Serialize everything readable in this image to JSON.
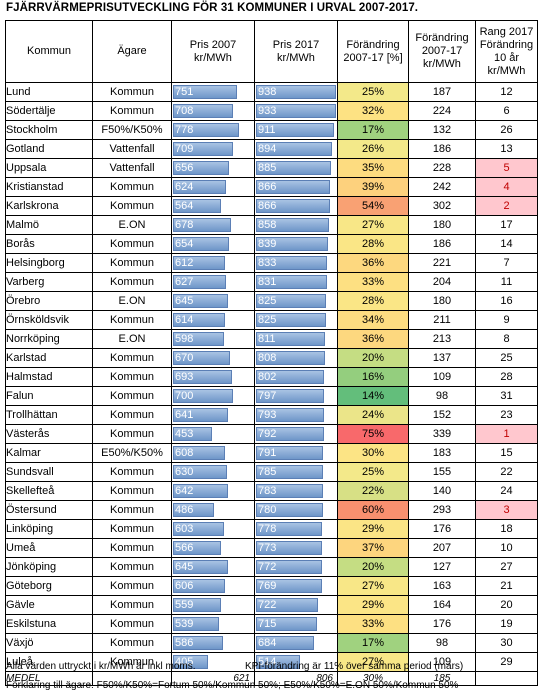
{
  "title": "FJÄRRVÄRMEPRISUTVECKLING FÖR 31 KOMMUNER I URVAL 2007-2017.",
  "headers": {
    "kommun": "Kommun",
    "agare": "Ägare",
    "pris2007": "Pris 2007 kr/MWh",
    "pris2017": "Pris 2017 kr/MWh",
    "forandring_pct": "Förändring 2007-17 [%]",
    "forandring_kr": "Förändring 2007-17 kr/MWh",
    "rang": "Rang 2017 Förändring 10 år kr/MWh"
  },
  "rows": [
    {
      "kommun": "Lund",
      "agare": "Kommun",
      "p2007": 751,
      "p2017": 938,
      "pct": "25%",
      "diff": 187,
      "rang": 12,
      "color": "#f3e98a"
    },
    {
      "kommun": "Södertälje",
      "agare": "Kommun",
      "p2007": 708,
      "p2017": 933,
      "pct": "32%",
      "diff": 224,
      "rang": 6,
      "color": "#fde283"
    },
    {
      "kommun": "Stockholm",
      "agare": "F50%/K50%",
      "p2007": 778,
      "p2017": 911,
      "pct": "17%",
      "diff": 132,
      "rang": 26,
      "color": "#a0d27f"
    },
    {
      "kommun": "Gotland",
      "agare": "Vattenfall",
      "p2007": 709,
      "p2017": 894,
      "pct": "26%",
      "diff": 186,
      "rang": 13,
      "color": "#f3e98a"
    },
    {
      "kommun": "Uppsala",
      "agare": "Vattenfall",
      "p2007": 656,
      "p2017": 885,
      "pct": "35%",
      "diff": 228,
      "rang": 5,
      "color": "#fddc80"
    },
    {
      "kommun": "Kristianstad",
      "agare": "Kommun",
      "p2007": 624,
      "p2017": 866,
      "pct": "39%",
      "diff": 242,
      "rang": 4,
      "color": "#fdd17d"
    },
    {
      "kommun": "Karlskrona",
      "agare": "Kommun",
      "p2007": 564,
      "p2017": 866,
      "pct": "54%",
      "diff": 302,
      "rang": 2,
      "color": "#f9a173"
    },
    {
      "kommun": "Malmö",
      "agare": "E.ON",
      "p2007": 678,
      "p2017": 858,
      "pct": "27%",
      "diff": 180,
      "rang": 17,
      "color": "#f8e787"
    },
    {
      "kommun": "Borås",
      "agare": "Kommun",
      "p2007": 654,
      "p2017": 839,
      "pct": "28%",
      "diff": 186,
      "rang": 14,
      "color": "#fae686"
    },
    {
      "kommun": "Helsingborg",
      "agare": "Kommun",
      "p2007": 612,
      "p2017": 833,
      "pct": "36%",
      "diff": 221,
      "rang": 7,
      "color": "#fdd87f"
    },
    {
      "kommun": "Varberg",
      "agare": "Kommun",
      "p2007": 627,
      "p2017": 831,
      "pct": "33%",
      "diff": 204,
      "rang": 11,
      "color": "#fde082"
    },
    {
      "kommun": "Örebro",
      "agare": "E.ON",
      "p2007": 645,
      "p2017": 825,
      "pct": "28%",
      "diff": 180,
      "rang": 16,
      "color": "#fae686"
    },
    {
      "kommun": "Örnsköldsvik",
      "agare": "Kommun",
      "p2007": 614,
      "p2017": 825,
      "pct": "34%",
      "diff": 211,
      "rang": 9,
      "color": "#fddd81"
    },
    {
      "kommun": "Norrköping",
      "agare": "E.ON",
      "p2007": 598,
      "p2017": 811,
      "pct": "36%",
      "diff": 213,
      "rang": 8,
      "color": "#fdd87f"
    },
    {
      "kommun": "Karlstad",
      "agare": "Kommun",
      "p2007": 670,
      "p2017": 808,
      "pct": "20%",
      "diff": 137,
      "rang": 25,
      "color": "#c5dd83"
    },
    {
      "kommun": "Halmstad",
      "agare": "Kommun",
      "p2007": 693,
      "p2017": 802,
      "pct": "16%",
      "diff": 109,
      "rang": 28,
      "color": "#94ce7e"
    },
    {
      "kommun": "Falun",
      "agare": "Kommun",
      "p2007": 700,
      "p2017": 797,
      "pct": "14%",
      "diff": 98,
      "rang": 31,
      "color": "#63be7b"
    },
    {
      "kommun": "Trollhättan",
      "agare": "Kommun",
      "p2007": 641,
      "p2017": 793,
      "pct": "24%",
      "diff": 152,
      "rang": 23,
      "color": "#ebe589"
    },
    {
      "kommun": "Västerås",
      "agare": "Kommun",
      "p2007": 453,
      "p2017": 792,
      "pct": "75%",
      "diff": 339,
      "rang": 1,
      "color": "#f8696b"
    },
    {
      "kommun": "Kalmar",
      "agare": "E50%/K50%",
      "p2007": 608,
      "p2017": 791,
      "pct": "30%",
      "diff": 183,
      "rang": 15,
      "color": "#fce485"
    },
    {
      "kommun": "Sundsvall",
      "agare": "Kommun",
      "p2007": 630,
      "p2017": 785,
      "pct": "25%",
      "diff": 155,
      "rang": 22,
      "color": "#f3e98a"
    },
    {
      "kommun": "Skellefteå",
      "agare": "Kommun",
      "p2007": 642,
      "p2017": 783,
      "pct": "22%",
      "diff": 140,
      "rang": 24,
      "color": "#d7e085"
    },
    {
      "kommun": "Östersund",
      "agare": "Kommun",
      "p2007": 486,
      "p2017": 780,
      "pct": "60%",
      "diff": 293,
      "rang": 3,
      "color": "#f8906f"
    },
    {
      "kommun": "Linköping",
      "agare": "Kommun",
      "p2007": 603,
      "p2017": 778,
      "pct": "29%",
      "diff": 176,
      "rang": 18,
      "color": "#fbe586"
    },
    {
      "kommun": "Umeå",
      "agare": "Kommun",
      "p2007": 566,
      "p2017": 773,
      "pct": "37%",
      "diff": 207,
      "rang": 10,
      "color": "#fdd57e"
    },
    {
      "kommun": "Jönköping",
      "agare": "Kommun",
      "p2007": 645,
      "p2017": 772,
      "pct": "20%",
      "diff": 127,
      "rang": 27,
      "color": "#c5dd83"
    },
    {
      "kommun": "Göteborg",
      "agare": "Kommun",
      "p2007": 606,
      "p2017": 769,
      "pct": "27%",
      "diff": 163,
      "rang": 21,
      "color": "#f8e787"
    },
    {
      "kommun": "Gävle",
      "agare": "Kommun",
      "p2007": 559,
      "p2017": 722,
      "pct": "29%",
      "diff": 164,
      "rang": 20,
      "color": "#fbe586"
    },
    {
      "kommun": "Eskilstuna",
      "agare": "Kommun",
      "p2007": 539,
      "p2017": 715,
      "pct": "33%",
      "diff": 176,
      "rang": 19,
      "color": "#fde082"
    },
    {
      "kommun": "Växjö",
      "agare": "Kommun",
      "p2007": 586,
      "p2017": 684,
      "pct": "17%",
      "diff": 98,
      "rang": 30,
      "color": "#a0d27f"
    },
    {
      "kommun": "Luleå",
      "agare": "Kommun",
      "p2007": 405,
      "p2017": 514,
      "pct": "27%",
      "diff": 109,
      "rang": 29,
      "color": "#f8e787"
    }
  ],
  "medel": {
    "label": "MEDEL",
    "p2007": "621",
    "p2017": "806",
    "pct": "30%",
    "diff": "185"
  },
  "highlight_color": "#ffc7ce",
  "notes": {
    "line1_left": "Alla värden uttryckt i kr/MWh är inkl moms.",
    "line1_right": "KPI-förändring är 11% över samma period (mars)",
    "line2": "Förklaring till ägare: F50%/K50%=Fortum 50%/Kommun 50%; E50%/K50%=E.ON 50%/Kommun 50%"
  }
}
